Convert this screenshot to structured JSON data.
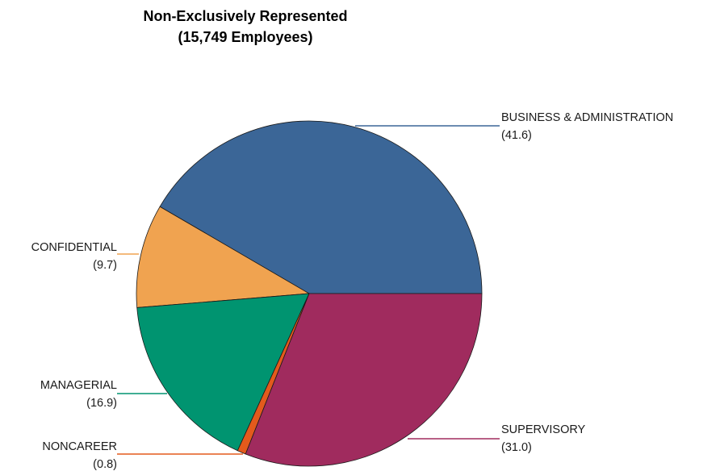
{
  "chart_data": {
    "type": "pie",
    "title": "Non-Exclusively Represented",
    "subtitle": "(15,749 Employees)",
    "start_angle_deg": 0,
    "direction": "counterclockwise",
    "slices": [
      {
        "label": "BUSINESS & ADMINISTRATION",
        "value": 41.6,
        "value_text": "(41.6)",
        "color": "#3b6697"
      },
      {
        "label": "CONFIDENTIAL",
        "value": 9.7,
        "value_text": "(9.7)",
        "color": "#f0a350"
      },
      {
        "label": "MANAGERIAL",
        "value": 16.9,
        "value_text": "(16.9)",
        "color": "#009470"
      },
      {
        "label": "NONCAREER",
        "value": 0.8,
        "value_text": "(0.8)",
        "color": "#e35a1c"
      },
      {
        "label": "SUPERVISORY",
        "value": 31.0,
        "value_text": "(31.0)",
        "color": "#a02b5e"
      }
    ]
  }
}
